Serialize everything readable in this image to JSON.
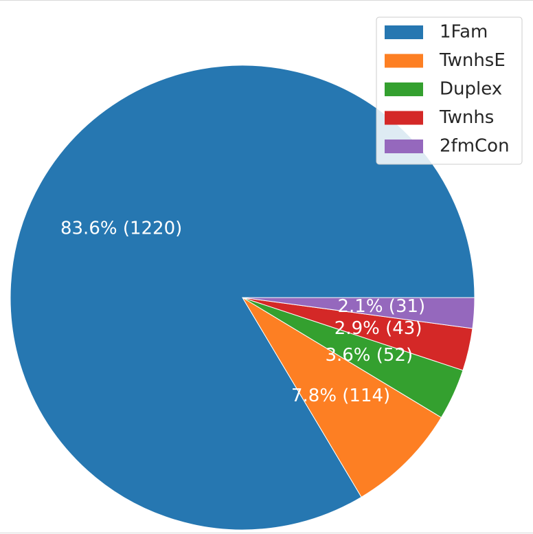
{
  "chart_data": {
    "type": "pie",
    "title": "",
    "categories": [
      "1Fam",
      "TwnhsE",
      "Duplex",
      "Twnhs",
      "2fmCon"
    ],
    "values": [
      1220,
      114,
      52,
      43,
      31
    ],
    "percent_labels": [
      "83.6%  (1220)",
      "7.8%  (114)",
      "3.6%  (52)",
      "2.9%  (43)",
      "2.1%  (31)"
    ],
    "colors": [
      "#2677b1",
      "#fd7f23",
      "#34a02f",
      "#d42827",
      "#9568bd"
    ],
    "legend": {
      "position": "top-right",
      "entries": [
        "1Fam",
        "TwnhsE",
        "Duplex",
        "Twnhs",
        "2fmCon"
      ]
    },
    "start_angle_deg": 0,
    "direction": "clockwise"
  }
}
